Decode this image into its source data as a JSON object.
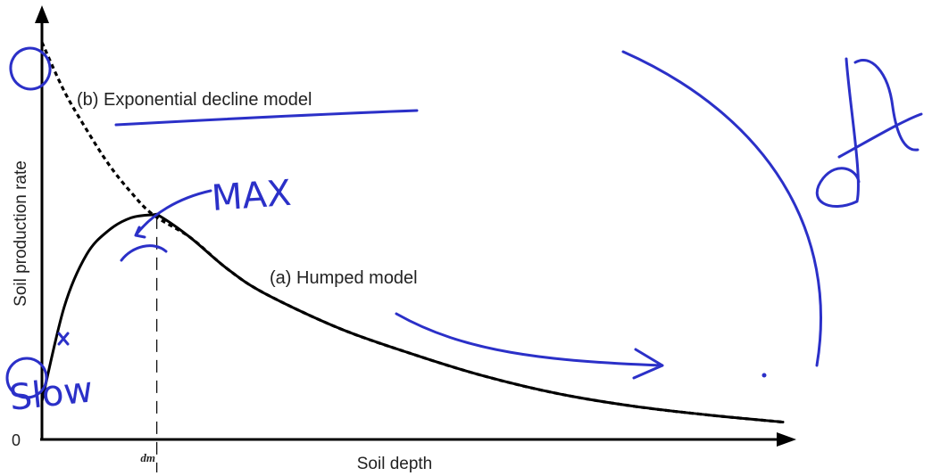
{
  "chart_data": {
    "type": "line",
    "xlabel": "Soil depth",
    "ylabel": "Soil production rate",
    "origin_label": "0",
    "x_marker_label": "dm",
    "xlim": [
      0,
      10
    ],
    "ylim": [
      0,
      1.2
    ],
    "grid": false,
    "series": [
      {
        "name": "(a) Humped model",
        "style": "solid",
        "x": [
          0,
          0.3,
          0.6,
          0.9,
          1.2,
          1.5,
          1.6,
          2.0,
          2.5,
          3.0,
          4.0,
          5.0,
          6.0,
          7.0,
          8.0,
          9.0,
          10.0
        ],
        "y": [
          0.11,
          0.38,
          0.53,
          0.6,
          0.636,
          0.645,
          0.64,
          0.58,
          0.49,
          0.42,
          0.32,
          0.245,
          0.18,
          0.13,
          0.095,
          0.07,
          0.05
        ]
      },
      {
        "name": "(b) Exponential decline model",
        "style": "dashed",
        "x": [
          0,
          0.3,
          0.6,
          0.9,
          1.2,
          1.5,
          2.0,
          2.5,
          3.0,
          4.0,
          5.0,
          6.0,
          7.0,
          8.0,
          9.0,
          10.0
        ],
        "y": [
          1.14,
          1.0,
          0.89,
          0.79,
          0.71,
          0.645,
          0.58,
          0.49,
          0.42,
          0.32,
          0.245,
          0.18,
          0.13,
          0.095,
          0.07,
          0.05
        ]
      }
    ],
    "marker_x": 1.55,
    "annotations": [
      "MAX",
      "Slow"
    ]
  },
  "colors": {
    "ink": "#2b30c8",
    "axis": "#000000"
  }
}
